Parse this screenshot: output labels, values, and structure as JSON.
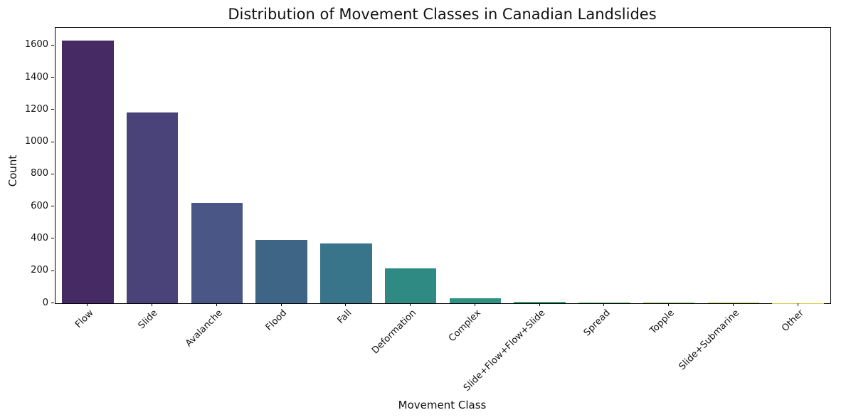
{
  "chart_data": {
    "type": "bar",
    "title": "Distribution of Movement Classes in Canadian Landslides",
    "xlabel": "Movement Class",
    "ylabel": "Count",
    "categories": [
      "Flow",
      "Slide",
      "Avalanche",
      "Flood",
      "Fall",
      "Deformation",
      "Complex",
      "Slide+Flow+Flow+Slide",
      "Spread",
      "Topple",
      "Slide+Submarine",
      "Other"
    ],
    "values": [
      1630,
      1185,
      625,
      395,
      370,
      215,
      30,
      8,
      6,
      5,
      5,
      1
    ],
    "bar_colors": [
      "#452a63",
      "#4a4379",
      "#4a5685",
      "#3e6486",
      "#38748a",
      "#2f8a84",
      "#2f9181",
      "#37a172",
      "#55b061",
      "#7fbc55",
      "#abc64c",
      "#d6cf44"
    ],
    "ylim": [
      0,
      1710
    ],
    "yticks": [
      0,
      200,
      400,
      600,
      800,
      1000,
      1200,
      1400,
      1600
    ],
    "grid": false,
    "legend": null,
    "axis_color": "#000000",
    "text_color": "#111111",
    "background_color": "#ffffff"
  }
}
